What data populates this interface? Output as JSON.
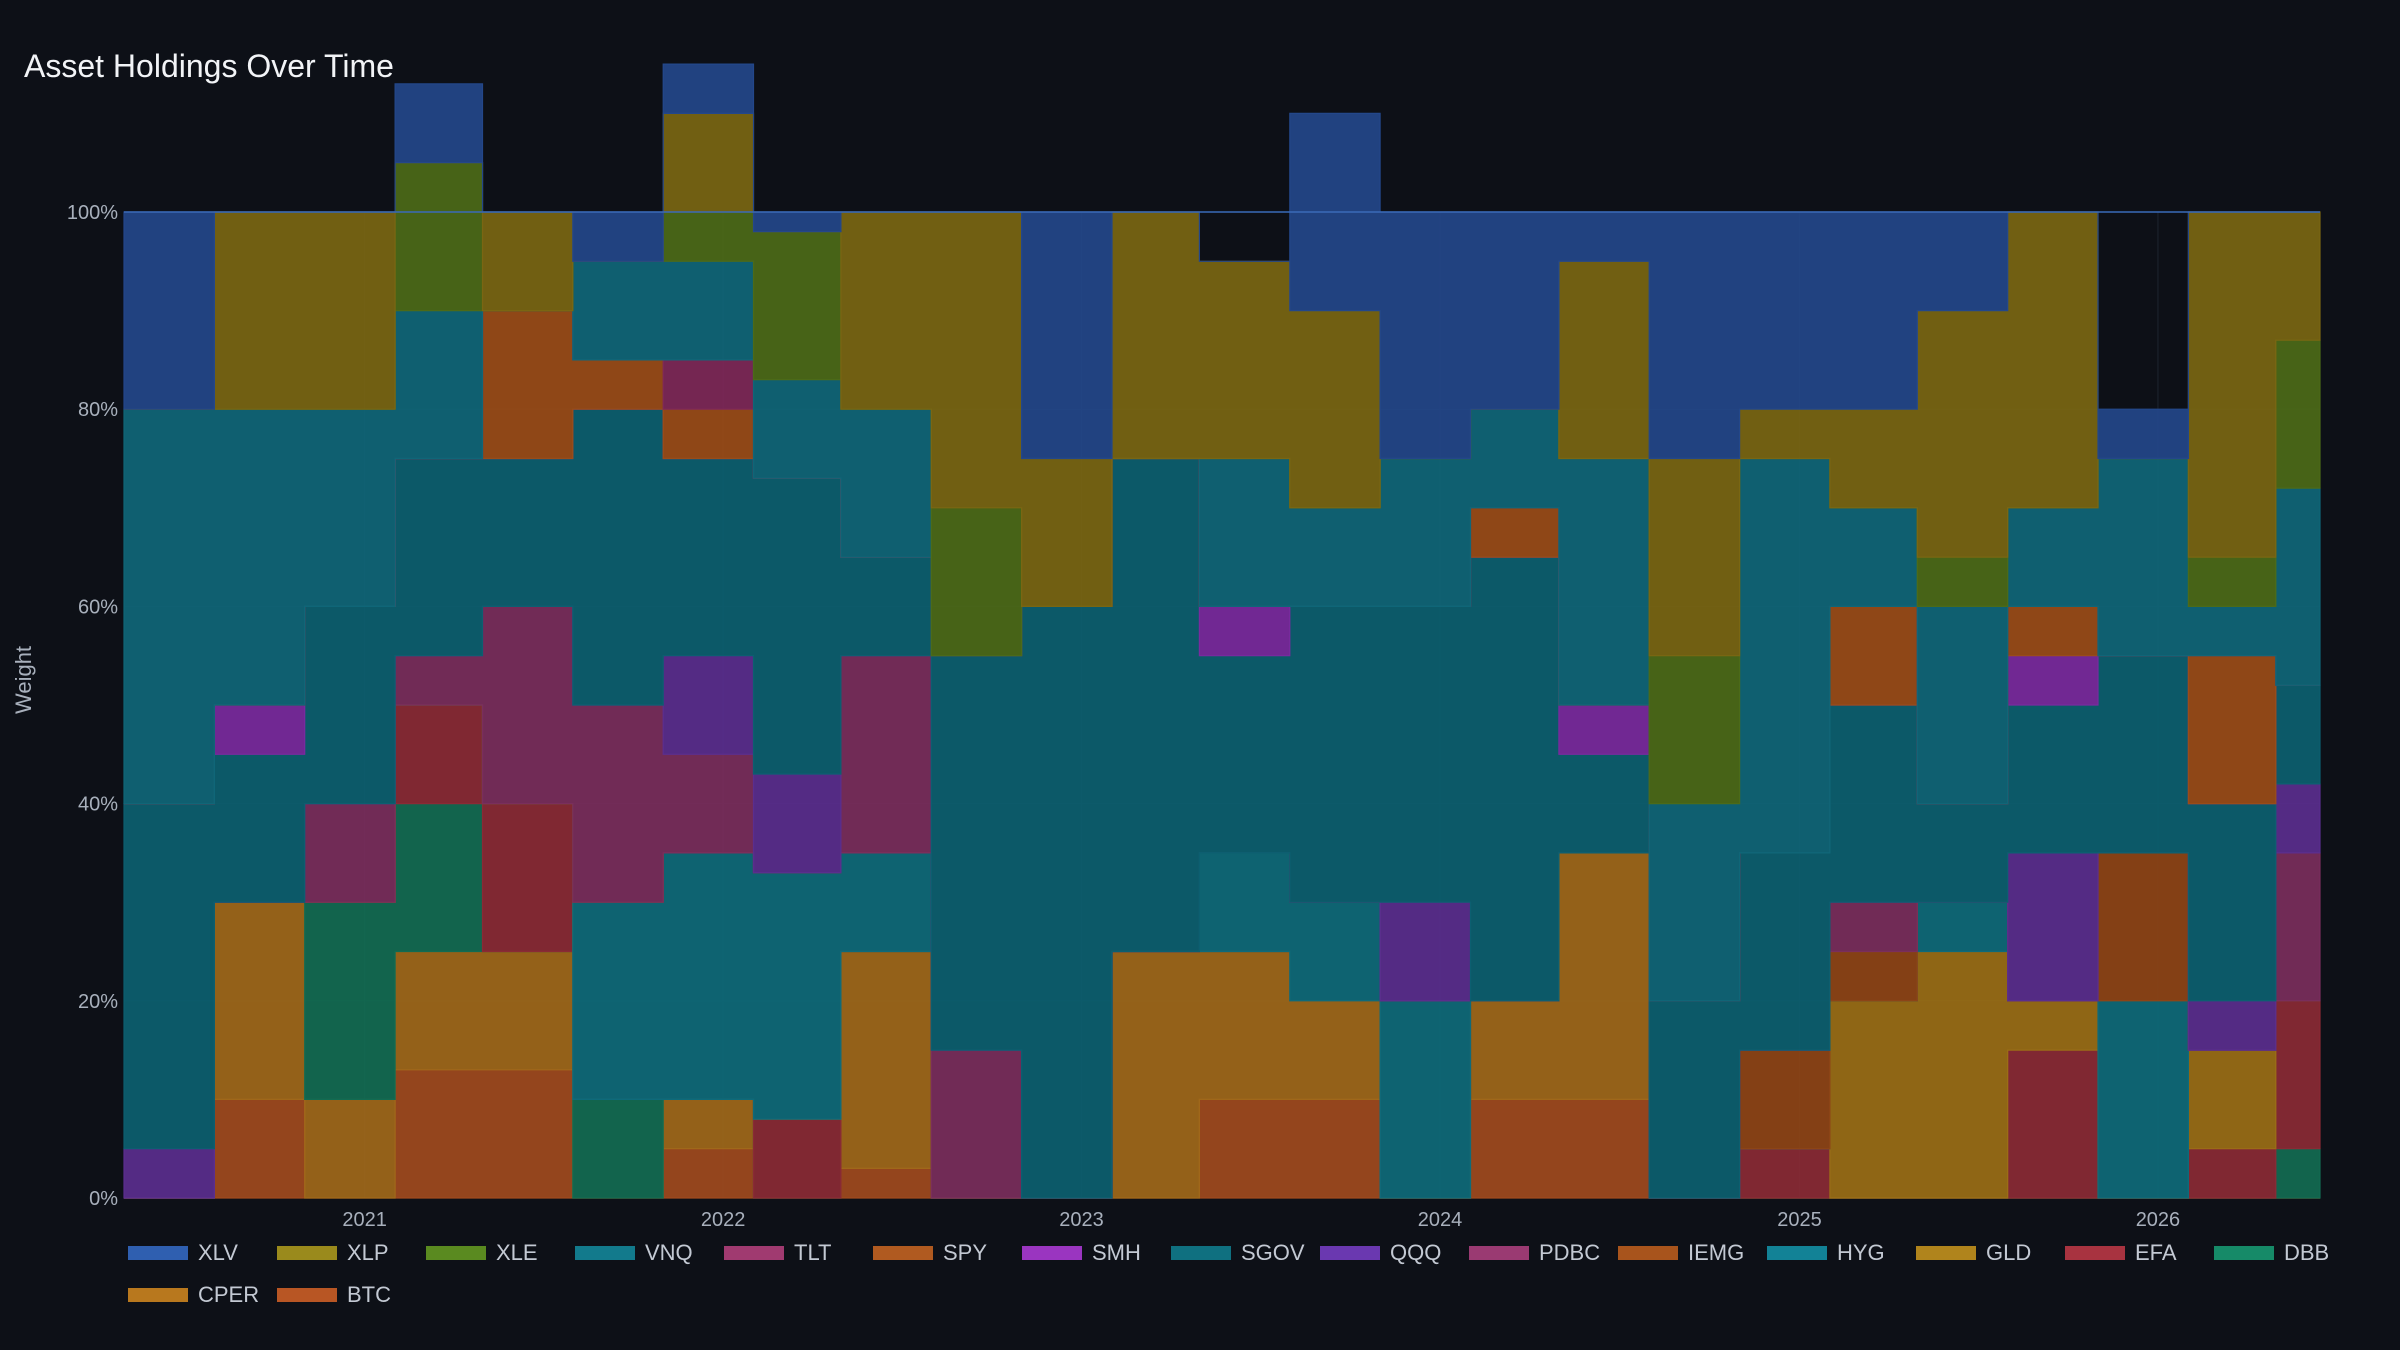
{
  "title": "Asset Holdings Over Time",
  "chart_data": {
    "type": "area",
    "stacked": true,
    "step": true,
    "normalized": true,
    "title": "Asset Holdings Over Time",
    "ylabel": "Weight",
    "xlabel": "",
    "xlim": [
      "2020-05-01",
      "2026-06-15"
    ],
    "ylim": [
      0,
      100
    ],
    "y_ticks": [
      "0%",
      "20%",
      "40%",
      "60%",
      "80%",
      "100%"
    ],
    "x_ticks": [
      "2021",
      "2022",
      "2023",
      "2024",
      "2025",
      "2026"
    ],
    "grid": true,
    "legend_position": "bottom",
    "dates": [
      "2020-05-01",
      "2020-08-01",
      "2020-11-01",
      "2021-02-01",
      "2021-05-01",
      "2021-08-01",
      "2021-11-01",
      "2022-02-01",
      "2022-05-01",
      "2022-08-01",
      "2022-11-01",
      "2023-02-01",
      "2023-05-01",
      "2023-08-01",
      "2023-11-01",
      "2024-02-01",
      "2024-05-01",
      "2024-08-01",
      "2024-11-01",
      "2025-02-01",
      "2025-05-01",
      "2025-08-01",
      "2025-11-01",
      "2026-02-01",
      "2026-05-01"
    ],
    "series": [
      {
        "name": "BTC",
        "color": "#a04a1e",
        "values": [
          0,
          10,
          0,
          13,
          13,
          0,
          5,
          0,
          3,
          0,
          0,
          0,
          10,
          10,
          0,
          10,
          10,
          0,
          0,
          0,
          0,
          0,
          0,
          0,
          0
        ]
      },
      {
        "name": "CPER",
        "color": "#a0681a",
        "values": [
          0,
          20,
          10,
          12,
          12,
          0,
          5,
          0,
          22,
          0,
          0,
          25,
          15,
          10,
          0,
          10,
          25,
          0,
          0,
          0,
          0,
          0,
          0,
          0,
          0
        ]
      },
      {
        "name": "DBB",
        "color": "#126b52",
        "values": [
          0,
          0,
          20,
          15,
          0,
          10,
          0,
          0,
          0,
          0,
          0,
          0,
          0,
          0,
          0,
          0,
          0,
          0,
          0,
          0,
          0,
          0,
          0,
          0,
          5
        ]
      },
      {
        "name": "EFA",
        "color": "#8a2a35",
        "values": [
          0,
          0,
          0,
          10,
          15,
          0,
          0,
          8,
          0,
          0,
          0,
          0,
          0,
          0,
          0,
          0,
          0,
          0,
          5,
          0,
          0,
          15,
          0,
          5,
          15
        ]
      },
      {
        "name": "GLD",
        "color": "#9a6e16",
        "values": [
          0,
          0,
          0,
          0,
          0,
          0,
          0,
          0,
          0,
          0,
          0,
          0,
          0,
          0,
          0,
          0,
          0,
          0,
          0,
          20,
          25,
          5,
          0,
          10,
          0
        ]
      },
      {
        "name": "HYG",
        "color": "#0e6a7a",
        "values": [
          0,
          0,
          0,
          0,
          0,
          20,
          25,
          25,
          10,
          0,
          0,
          0,
          10,
          10,
          20,
          0,
          0,
          0,
          0,
          0,
          5,
          0,
          20,
          0,
          0
        ]
      },
      {
        "name": "IEMG",
        "color": "#8e4416",
        "values": [
          0,
          0,
          0,
          0,
          0,
          0,
          0,
          0,
          0,
          0,
          0,
          0,
          0,
          0,
          0,
          0,
          0,
          0,
          10,
          5,
          0,
          0,
          15,
          0,
          0
        ]
      },
      {
        "name": "PDBC",
        "color": "#7a2e5c",
        "values": [
          0,
          0,
          10,
          5,
          20,
          20,
          10,
          0,
          20,
          15,
          0,
          0,
          0,
          0,
          0,
          0,
          0,
          0,
          0,
          5,
          0,
          0,
          0,
          0,
          15
        ]
      },
      {
        "name": "QQQ",
        "color": "#5a2e8e",
        "values": [
          5,
          0,
          0,
          0,
          0,
          0,
          10,
          10,
          0,
          0,
          0,
          0,
          0,
          0,
          10,
          0,
          0,
          0,
          0,
          0,
          0,
          15,
          0,
          5,
          7
        ]
      },
      {
        "name": "SGOV",
        "color": "#0c5f70",
        "values": [
          35,
          15,
          20,
          20,
          15,
          30,
          20,
          30,
          10,
          40,
          60,
          50,
          20,
          30,
          30,
          45,
          10,
          20,
          20,
          20,
          10,
          15,
          20,
          20,
          10
        ]
      },
      {
        "name": "SMH",
        "color": "#7a2a9e",
        "values": [
          0,
          5,
          0,
          0,
          0,
          0,
          0,
          0,
          0,
          0,
          0,
          0,
          5,
          0,
          0,
          0,
          5,
          0,
          0,
          0,
          0,
          5,
          0,
          0,
          0
        ]
      },
      {
        "name": "SPY",
        "color": "#9a4c18",
        "values": [
          0,
          0,
          0,
          0,
          15,
          5,
          5,
          0,
          0,
          0,
          0,
          0,
          0,
          0,
          0,
          5,
          0,
          0,
          0,
          10,
          0,
          5,
          0,
          15,
          0
        ]
      },
      {
        "name": "TLT",
        "color": "#7e2858",
        "values": [
          0,
          0,
          0,
          0,
          0,
          0,
          5,
          0,
          0,
          0,
          0,
          0,
          0,
          0,
          0,
          0,
          0,
          0,
          0,
          0,
          0,
          0,
          0,
          0,
          0
        ]
      },
      {
        "name": "VNQ",
        "color": "#0f6678",
        "values": [
          40,
          30,
          20,
          15,
          0,
          10,
          10,
          10,
          15,
          0,
          0,
          0,
          15,
          10,
          15,
          10,
          25,
          20,
          40,
          10,
          20,
          10,
          20,
          5,
          20
        ]
      },
      {
        "name": "XLE",
        "color": "#4c6a18",
        "values": [
          0,
          0,
          0,
          15,
          0,
          0,
          5,
          15,
          0,
          15,
          0,
          0,
          0,
          0,
          0,
          0,
          0,
          15,
          0,
          0,
          5,
          0,
          0,
          5,
          15
        ]
      },
      {
        "name": "XLP",
        "color": "#7a6612",
        "values": [
          0,
          20,
          20,
          0,
          10,
          0,
          10,
          0,
          20,
          30,
          15,
          25,
          20,
          20,
          0,
          0,
          20,
          20,
          5,
          10,
          25,
          30,
          0,
          35,
          13
        ]
      },
      {
        "name": "XLV",
        "color": "#23478a",
        "values": [
          20,
          0,
          0,
          8,
          0,
          5,
          5,
          2,
          0,
          0,
          25,
          0,
          0,
          20,
          25,
          20,
          5,
          25,
          20,
          20,
          10,
          0,
          5,
          0,
          0
        ]
      }
    ]
  },
  "legend": [
    {
      "label": "XLV",
      "color": "#2f5fb0"
    },
    {
      "label": "XLP",
      "color": "#9a8a1c"
    },
    {
      "label": "XLE",
      "color": "#5a8a20"
    },
    {
      "label": "VNQ",
      "color": "#127a8c"
    },
    {
      "label": "TLT",
      "color": "#a03a70"
    },
    {
      "label": "SPY",
      "color": "#b05a20"
    },
    {
      "label": "SMH",
      "color": "#9a35c0"
    },
    {
      "label": "SGOV",
      "color": "#0f7080"
    },
    {
      "label": "QQQ",
      "color": "#6a38b0"
    },
    {
      "label": "PDBC",
      "color": "#9a3a72"
    },
    {
      "label": "IEMG",
      "color": "#a8541c"
    },
    {
      "label": "HYG",
      "color": "#128296"
    },
    {
      "label": "GLD",
      "color": "#b0841c"
    },
    {
      "label": "EFA",
      "color": "#a83340"
    },
    {
      "label": "DBB",
      "color": "#168a68"
    },
    {
      "label": "CPER",
      "color": "#b8781e"
    },
    {
      "label": "BTC",
      "color": "#b85624"
    }
  ]
}
